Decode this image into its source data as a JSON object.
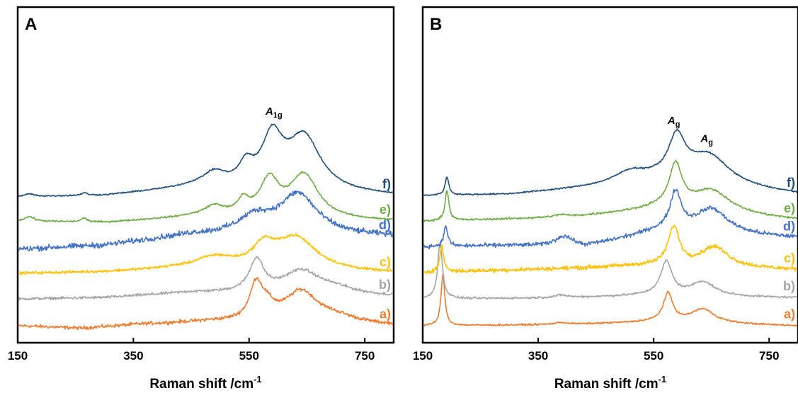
{
  "chart_data": [
    {
      "type": "line",
      "panel_label": "A",
      "xlabel": "Raman shift /cm",
      "xlabel_superscript": "-1",
      "xlim": [
        150,
        800
      ],
      "xticks": [
        150,
        350,
        550,
        750
      ],
      "yticks": false,
      "grid": false,
      "stacked_offsets": true,
      "annotations": [
        {
          "text": "A",
          "subscript": "1g",
          "x": 593
        }
      ],
      "series": [
        {
          "name": "a)",
          "color": "#ED7D31",
          "offset": 0.0,
          "noise": 0.1,
          "baseline": [
            [
              150,
              0.05
            ],
            [
              260,
              -0.05
            ],
            [
              360,
              0.1
            ],
            [
              480,
              0.2
            ],
            [
              800,
              0.05
            ]
          ],
          "peaks": [
            [
              562,
              1.3,
              13
            ],
            [
              580,
              0.5,
              18
            ],
            [
              640,
              1.2,
              34
            ],
            [
              700,
              0.25,
              45
            ]
          ]
        },
        {
          "name": "b)",
          "color": "#A5A5A5",
          "offset": 1.05,
          "noise": 0.08,
          "baseline": [
            [
              150,
              0.05
            ],
            [
              300,
              0.1
            ],
            [
              450,
              0.3
            ],
            [
              800,
              0.15
            ]
          ],
          "peaks": [
            [
              563,
              1.25,
              15
            ],
            [
              640,
              0.9,
              40
            ],
            [
              700,
              0.2,
              40
            ]
          ]
        },
        {
          "name": "c)",
          "color": "#FFC000",
          "offset": 2.05,
          "noise": 0.08,
          "baseline": [
            [
              150,
              0.05
            ],
            [
              300,
              0.1
            ],
            [
              420,
              0.2
            ],
            [
              800,
              0.05
            ]
          ],
          "peaks": [
            [
              490,
              0.45,
              42
            ],
            [
              575,
              0.75,
              22
            ],
            [
              630,
              1.3,
              45
            ]
          ]
        },
        {
          "name": "d)",
          "color": "#4472C4",
          "offset": 3.0,
          "noise": 0.16,
          "baseline": [
            [
              150,
              0.05
            ],
            [
              300,
              0.2
            ],
            [
              450,
              0.6
            ],
            [
              800,
              0.55
            ]
          ],
          "peaks": [
            [
              560,
              0.65,
              35
            ],
            [
              635,
              1.6,
              40
            ]
          ]
        },
        {
          "name": "e)",
          "color": "#70AD47",
          "offset": 4.05,
          "noise": 0.05,
          "baseline": [
            [
              150,
              0.1
            ],
            [
              300,
              0.05
            ],
            [
              450,
              0.25
            ],
            [
              800,
              0.1
            ]
          ],
          "peaks": [
            [
              170,
              0.18,
              10
            ],
            [
              265,
              0.15,
              6
            ],
            [
              490,
              0.4,
              22
            ],
            [
              540,
              0.55,
              12
            ],
            [
              585,
              1.4,
              20
            ],
            [
              645,
              1.7,
              30
            ]
          ]
        },
        {
          "name": "f)",
          "color": "#1F4E79",
          "offset": 5.05,
          "noise": 0.04,
          "baseline": [
            [
              150,
              0.05
            ],
            [
              300,
              0.1
            ],
            [
              450,
              0.4
            ],
            [
              800,
              0.1
            ]
          ],
          "peaks": [
            [
              170,
              0.1,
              10
            ],
            [
              265,
              0.1,
              6
            ],
            [
              490,
              0.55,
              25
            ],
            [
              545,
              0.75,
              15
            ],
            [
              590,
              1.9,
              22
            ],
            [
              645,
              2.1,
              35
            ]
          ]
        }
      ]
    },
    {
      "type": "line",
      "panel_label": "B",
      "xlabel": "Raman shift /cm",
      "xlabel_superscript": "-1",
      "xlim": [
        150,
        800
      ],
      "xticks": [
        150,
        350,
        550,
        750
      ],
      "yticks": false,
      "grid": false,
      "stacked_offsets": true,
      "annotations": [
        {
          "text": "A",
          "subscript": "g",
          "x": 585
        },
        {
          "text": "A",
          "subscript": "g",
          "x": 642
        }
      ],
      "series": [
        {
          "name": "a)",
          "color": "#ED7D31",
          "offset": 0.0,
          "noise": 0.05,
          "baseline": [
            [
              150,
              0.05
            ],
            [
              400,
              0.1
            ],
            [
              550,
              0.2
            ],
            [
              800,
              0.05
            ]
          ],
          "peaks": [
            [
              185,
              2.0,
              4
            ],
            [
              390,
              0.08,
              15
            ],
            [
              575,
              1.1,
              10
            ],
            [
              635,
              0.55,
              25
            ]
          ]
        },
        {
          "name": "b)",
          "color": "#A5A5A5",
          "offset": 1.05,
          "noise": 0.06,
          "baseline": [
            [
              150,
              0.05
            ],
            [
              400,
              0.1
            ],
            [
              550,
              0.2
            ],
            [
              800,
              0.1
            ]
          ],
          "peaks": [
            [
              180,
              2.2,
              5
            ],
            [
              390,
              0.1,
              15
            ],
            [
              572,
              1.3,
              12
            ],
            [
              635,
              0.55,
              25
            ]
          ]
        },
        {
          "name": "c)",
          "color": "#FFC000",
          "offset": 2.1,
          "noise": 0.12,
          "baseline": [
            [
              150,
              0.05
            ],
            [
              400,
              0.2
            ],
            [
              530,
              0.3
            ],
            [
              800,
              0.15
            ]
          ],
          "peaks": [
            [
              183,
              1.0,
              4
            ],
            [
              585,
              1.5,
              12
            ],
            [
              655,
              0.8,
              30
            ]
          ]
        },
        {
          "name": "d)",
          "color": "#4472C4",
          "offset": 3.1,
          "noise": 0.12,
          "baseline": [
            [
              150,
              0.05
            ],
            [
              300,
              0.1
            ],
            [
              430,
              0.05
            ],
            [
              550,
              0.6
            ],
            [
              800,
              0.4
            ]
          ],
          "peaks": [
            [
              190,
              0.8,
              4
            ],
            [
              395,
              0.4,
              18
            ],
            [
              588,
              1.5,
              12
            ],
            [
              650,
              1.0,
              35
            ]
          ]
        },
        {
          "name": "e)",
          "color": "#70AD47",
          "offset": 4.1,
          "noise": 0.06,
          "baseline": [
            [
              150,
              0.05
            ],
            [
              400,
              0.2
            ],
            [
              550,
              0.5
            ],
            [
              800,
              0.1
            ]
          ],
          "peaks": [
            [
              192,
              1.2,
              4
            ],
            [
              390,
              0.1,
              15
            ],
            [
              588,
              1.7,
              14
            ],
            [
              650,
              0.9,
              40
            ]
          ]
        },
        {
          "name": "f)",
          "color": "#1F4E79",
          "offset": 5.1,
          "noise": 0.04,
          "baseline": [
            [
              150,
              0.05
            ],
            [
              300,
              0.1
            ],
            [
              550,
              0.55
            ],
            [
              800,
              0.1
            ]
          ],
          "peaks": [
            [
              192,
              0.7,
              4
            ],
            [
              510,
              0.45,
              35
            ],
            [
              590,
              1.6,
              18
            ],
            [
              645,
              1.2,
              45
            ]
          ]
        }
      ]
    }
  ]
}
